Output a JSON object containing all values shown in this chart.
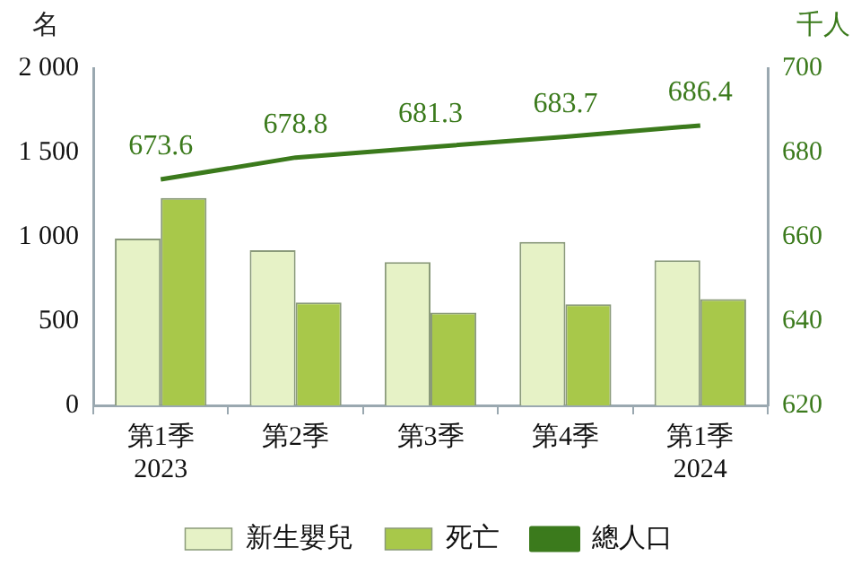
{
  "chart_data": {
    "type": "bar",
    "ylabel": "名",
    "y2label": "千人",
    "categories": [
      "第1季\n2023",
      "第2季",
      "第3季",
      "第4季",
      "第1季\n2024"
    ],
    "series": [
      {
        "name": "新生嬰兒",
        "color": "#e6f2c6",
        "values": [
          990,
          920,
          850,
          970,
          860
        ]
      },
      {
        "name": "死亡",
        "color": "#a8c84a",
        "values": [
          1230,
          610,
          550,
          600,
          630
        ]
      },
      {
        "name": "總人口",
        "type": "line",
        "axis": "y2",
        "color": "#3b7a1c",
        "values": [
          673.6,
          678.8,
          681.3,
          683.7,
          686.4
        ],
        "value_labels": [
          "673.6",
          "678.8",
          "681.3",
          "683.7",
          "686.4"
        ]
      }
    ],
    "ylim": [
      0,
      2000
    ],
    "yticks": [
      {
        "value": 0,
        "label": "0"
      },
      {
        "value": 500,
        "label": "500"
      },
      {
        "value": 1000,
        "label": "1 000"
      },
      {
        "value": 1500,
        "label": "1 500"
      },
      {
        "value": 2000,
        "label": "2 000"
      }
    ],
    "y2lim": [
      620,
      700
    ],
    "y2ticks": [
      620,
      640,
      660,
      680,
      700
    ],
    "grid": false,
    "legend": "bottom",
    "marker": "none",
    "line_style": "solid"
  }
}
